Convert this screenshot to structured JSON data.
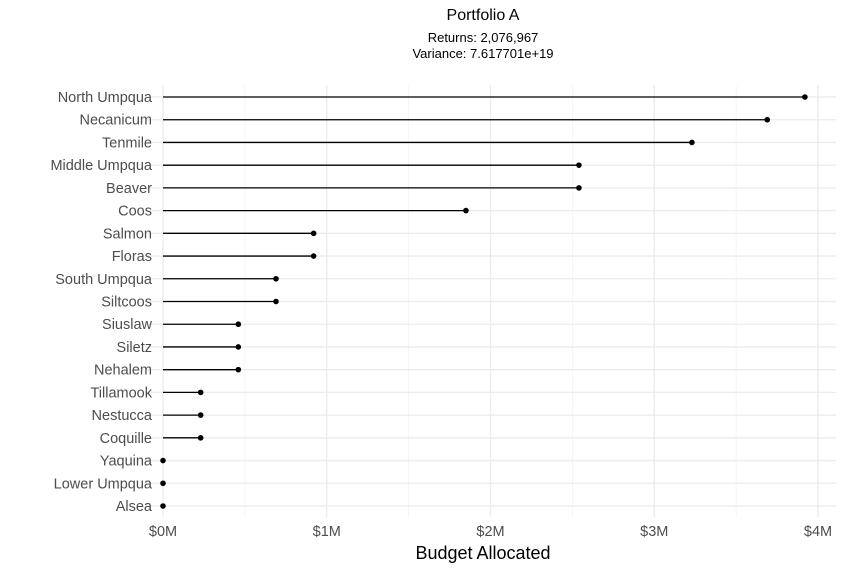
{
  "chart_data": {
    "type": "lollipop",
    "title": "Portfolio A",
    "subtitle_lines": [
      "Returns: 2,076,967",
      "Variance: 7.617701e+19"
    ],
    "xlabel": "Budget Allocated",
    "ylabel": "",
    "xlim": [
      0,
      4000000
    ],
    "x_ticks": [
      0,
      1000000,
      2000000,
      3000000,
      4000000
    ],
    "x_tick_labels": [
      "$0M",
      "$1M",
      "$2M",
      "$3M",
      "$4M"
    ],
    "grid": true,
    "legend": "none",
    "categories": [
      "North Umpqua",
      "Necanicum",
      "Tenmile",
      "Middle Umpqua",
      "Beaver",
      "Coos",
      "Salmon",
      "Floras",
      "South Umpqua",
      "Siltcoos",
      "Siuslaw",
      "Siletz",
      "Nehalem",
      "Tillamook",
      "Nestucca",
      "Coquille",
      "Yaquina",
      "Lower Umpqua",
      "Alsea"
    ],
    "values": [
      3920000,
      3690000,
      3230000,
      2540000,
      2540000,
      1850000,
      920000,
      920000,
      690000,
      690000,
      460000,
      460000,
      460000,
      230000,
      230000,
      230000,
      0,
      0,
      0
    ],
    "colors": {
      "stem": "#000000",
      "point": "#000000",
      "grid": "#ebebeb"
    }
  }
}
